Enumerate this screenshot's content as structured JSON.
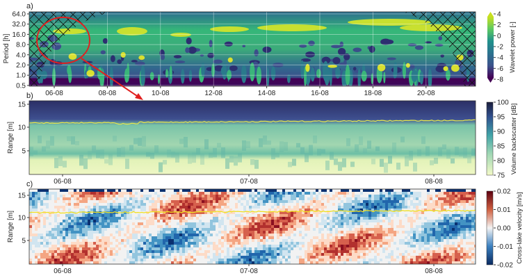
{
  "chart_data": [
    {
      "type": "heatmap",
      "panel_label": "a)",
      "ylabel": "Period [h]",
      "yscale": "log",
      "yticks": [
        "64.0",
        "32.0",
        "16.0",
        "8.0",
        "4.0",
        "2.0",
        "1.0",
        "0.5"
      ],
      "xticks": [
        "06-08",
        "08-08",
        "10-08",
        "12-08",
        "14-08",
        "16-08",
        "18-08",
        "20-08"
      ],
      "grid": true,
      "cone_of_influence": "hatched",
      "colorbar": {
        "label": "Wavelet power [-]",
        "ticks": [
          "4",
          "2",
          "0",
          "-2",
          "-4",
          "-6",
          "-8"
        ],
        "colormap": "viridis",
        "extend": "both"
      },
      "annotation": "red circle around 06-08 to 07-08, 4-16 h, with arrow to panel b"
    },
    {
      "type": "heatmap",
      "panel_label": "b)",
      "ylabel": "Range [m]",
      "yticks": [
        "15",
        "10",
        "5"
      ],
      "xticks": [
        "06-08",
        "07-08",
        "08-08"
      ],
      "colorbar": {
        "label": "Volume backscatter [dB]",
        "ticks": [
          "100",
          "95",
          "90",
          "85",
          "80",
          "75"
        ],
        "colormap": "YlGnBu"
      },
      "surface_line": {
        "color": "#e8e84a",
        "range_m": 11.5
      }
    },
    {
      "type": "heatmap",
      "panel_label": "c)",
      "ylabel": "Range [m]",
      "yticks": [
        "15",
        "10",
        "5"
      ],
      "xticks": [
        "06-08",
        "07-08",
        "08-08"
      ],
      "colorbar": {
        "label": "Cross-lake velocity [m/s]",
        "ticks": [
          "0.02",
          "0.01",
          "0.00",
          "-0.01",
          "-0.02"
        ],
        "colormap": "RdBu_r"
      },
      "surface_line": {
        "color": "#f0e020",
        "range_m": 11.5
      }
    }
  ],
  "colors": {
    "annotation": "#e02020"
  }
}
